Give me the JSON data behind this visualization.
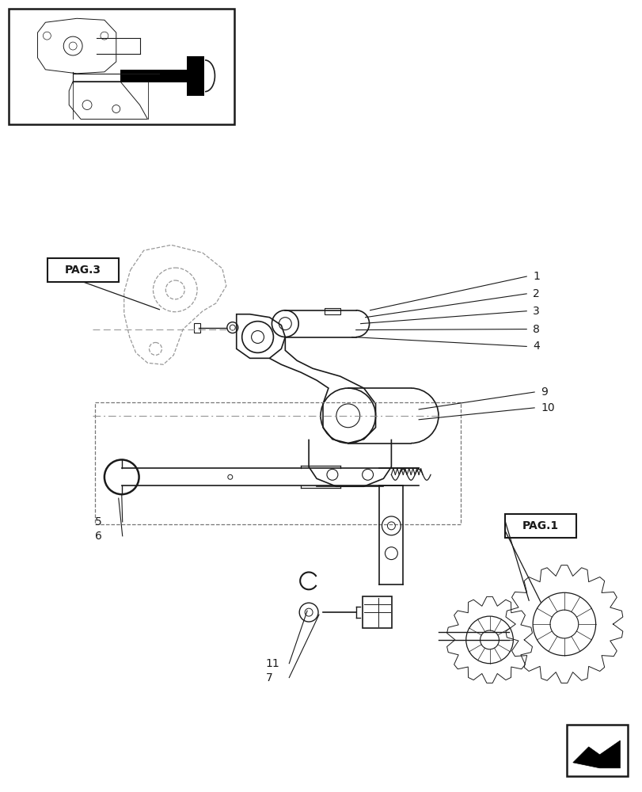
{
  "bg_color": "#ffffff",
  "line_color": "#1a1a1a",
  "label_color": "#1a1a1a",
  "pag3_label": "PAG.3",
  "pag1_label": "PAG.1",
  "figsize": [
    8.12,
    10.0
  ],
  "dpi": 100
}
